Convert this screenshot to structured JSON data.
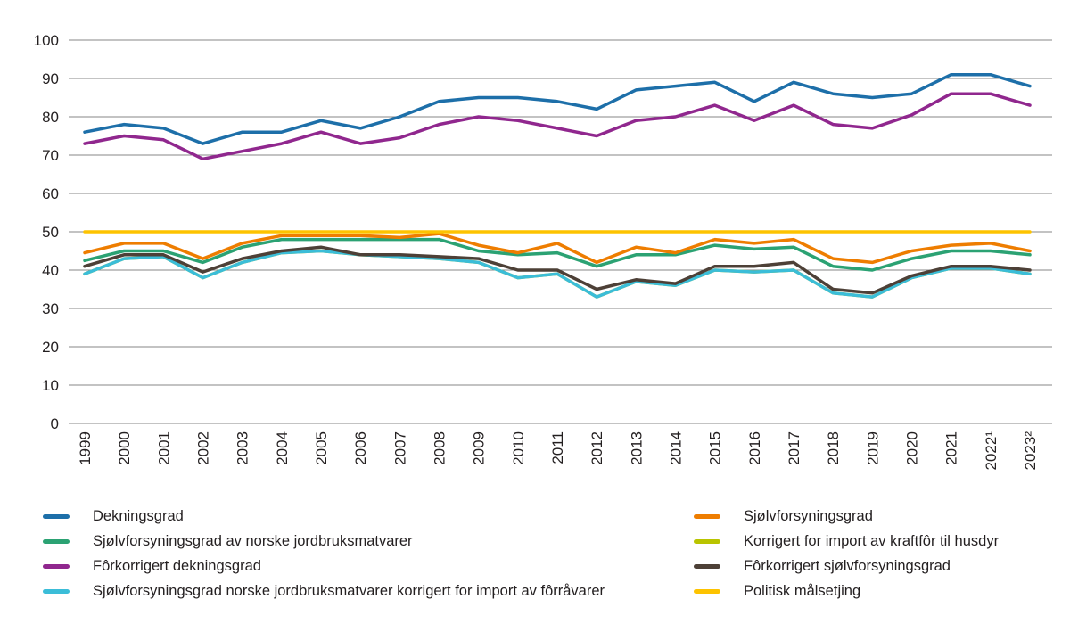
{
  "chart_data": {
    "type": "line",
    "title": "",
    "xlabel": "",
    "ylabel": "",
    "ylim": [
      0,
      100
    ],
    "yticks": [
      0,
      10,
      20,
      30,
      40,
      50,
      60,
      70,
      80,
      90,
      100
    ],
    "grid": true,
    "grid_color": "#878787",
    "legend_position": "bottom-two-columns",
    "x": [
      "1999",
      "2000",
      "2001",
      "2002",
      "2003",
      "2004",
      "2005",
      "2006",
      "2007",
      "2008",
      "2009",
      "2010",
      "2011",
      "2012",
      "2013",
      "2014",
      "2015",
      "2016",
      "2017",
      "2018",
      "2019",
      "2020",
      "2021",
      "2022¹",
      "2023²"
    ],
    "series": [
      {
        "name": "Dekningsgrad",
        "color": "#1d6fa9",
        "values": [
          76,
          78,
          77,
          73,
          76,
          76,
          79,
          77,
          80,
          84,
          85,
          85,
          84,
          82,
          87,
          88,
          89,
          84,
          89,
          86,
          85,
          86,
          91,
          91,
          88
        ]
      },
      {
        "name": "Sjølvforsyningsgrad",
        "color": "#ee7d00",
        "values": [
          44.5,
          47,
          47,
          43,
          47,
          49,
          49,
          49,
          48.5,
          49.5,
          46.5,
          44.5,
          47,
          42,
          46,
          44.5,
          48,
          47,
          48,
          43,
          42,
          45,
          46.5,
          47,
          45
        ]
      },
      {
        "name": "Sjølvforsyningsgrad av norske jordbruksmatvarer",
        "color": "#2ba273",
        "values": [
          42.5,
          45,
          45,
          42,
          46,
          48,
          48,
          48,
          48,
          48,
          45,
          44,
          44.5,
          41,
          44,
          44,
          46.5,
          45.5,
          46,
          41,
          40,
          43,
          45,
          45,
          44
        ]
      },
      {
        "name": "Korrigert for import av kraftfôr til husdyr",
        "color": "#b9c400",
        "values": [
          39,
          43,
          43.5,
          38,
          42,
          44.5,
          45,
          44,
          43.5,
          43,
          42,
          38,
          39,
          33,
          37,
          36,
          40,
          39.5,
          40,
          34,
          33,
          38,
          40.5,
          40.5,
          39
        ],
        "note": "not visibly distinct in the chart; coincides with and is drawn beneath the cyan series"
      },
      {
        "name": "Fôrkorrigert dekningsgrad",
        "color": "#90278e",
        "values": [
          73,
          75,
          74,
          69,
          71,
          73,
          76,
          73,
          74.5,
          78,
          80,
          79,
          77,
          75,
          79,
          80,
          83,
          79,
          83,
          78,
          77,
          80.5,
          86,
          86,
          83
        ]
      },
      {
        "name": "Fôrkorrigert sjølvforsyningsgrad",
        "color": "#4d4037",
        "values": [
          41,
          44,
          44,
          39.5,
          43,
          45,
          46,
          44,
          44,
          43.5,
          43,
          40,
          40,
          35,
          37.5,
          36.5,
          41,
          41,
          42,
          35,
          34,
          38.5,
          41,
          41,
          40
        ]
      },
      {
        "name": "Sjølvforsyningsgrad norske jordbruksmatvarer korrigert for import av fôrråvarer",
        "color": "#3bbdd8",
        "values": [
          39,
          43,
          43.5,
          38,
          42,
          44.5,
          45,
          44,
          43.5,
          43,
          42,
          38,
          39,
          33,
          37,
          36,
          40,
          39.5,
          40,
          34,
          33,
          38,
          40.5,
          40.5,
          39
        ]
      },
      {
        "name": "Politisk målsetjing",
        "color": "#fdc300",
        "values": [
          50,
          50,
          50,
          50,
          50,
          50,
          50,
          50,
          50,
          50,
          50,
          50,
          50,
          50,
          50,
          50,
          50,
          50,
          50,
          50,
          50,
          50,
          50,
          50,
          50
        ]
      }
    ]
  },
  "legend": {
    "columns": [
      {
        "items": [
          {
            "label": "Dekningsgrad",
            "color": "#1d6fa9"
          },
          {
            "label": "Sjølvforsyningsgrad av norske jordbruksmatvarer",
            "color": "#2ba273"
          },
          {
            "label": "Fôrkorrigert dekningsgrad",
            "color": "#90278e"
          },
          {
            "label": "Sjølvforsyningsgrad norske jordbruksmatvarer korrigert for import av fôrråvarer",
            "color": "#3bbdd8"
          }
        ]
      },
      {
        "items": [
          {
            "label": "Sjølvforsyningsgrad",
            "color": "#ee7d00"
          },
          {
            "label": "Korrigert for import av kraftfôr til husdyr",
            "color": "#b9c400"
          },
          {
            "label": "Fôrkorrigert sjølvforsyningsgrad",
            "color": "#4d4037"
          },
          {
            "label": "Politisk målsetjing",
            "color": "#fdc300"
          }
        ]
      }
    ]
  }
}
